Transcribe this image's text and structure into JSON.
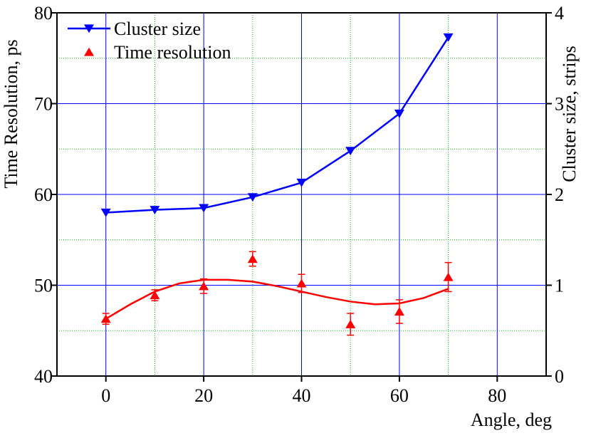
{
  "chart_data": {
    "type": "line",
    "x_label": "Angle, deg",
    "y_label": "Time Resolution, ps",
    "y2_label": "Cluster size, strips",
    "x": [
      0,
      10,
      20,
      30,
      40,
      50,
      60,
      70
    ],
    "series": [
      {
        "name": "Cluster size",
        "color": "#0000ff",
        "marker": "triangle-down",
        "axis": "y2",
        "line": true,
        "values": [
          1.8,
          1.83,
          1.85,
          1.97,
          2.13,
          2.48,
          2.89,
          3.73
        ]
      },
      {
        "name": "Time resolution",
        "color": "#ff0000",
        "marker": "triangle-up",
        "line": false,
        "values": [
          46.3,
          48.9,
          49.9,
          52.9,
          50.2,
          45.7,
          47.1,
          50.9
        ],
        "errors": [
          0.6,
          0.6,
          0.8,
          0.8,
          1.0,
          1.2,
          1.3,
          1.6
        ]
      }
    ],
    "fit": {
      "color": "#ff0000",
      "x": [
        0,
        5,
        10,
        15,
        20,
        25,
        30,
        35,
        40,
        45,
        50,
        55,
        60,
        65,
        70
      ],
      "values": [
        46.3,
        47.9,
        49.3,
        50.2,
        50.6,
        50.6,
        50.4,
        49.9,
        49.3,
        48.7,
        48.2,
        47.9,
        48.0,
        48.6,
        49.6
      ]
    },
    "xlim": [
      -10,
      90
    ],
    "xticks": [
      0,
      20,
      40,
      60,
      80
    ],
    "xminorticks": [
      10,
      30,
      50,
      70
    ],
    "ylim": [
      40,
      80
    ],
    "yticks": [
      40,
      50,
      60,
      70,
      80
    ],
    "yminorticks": [
      45,
      55,
      65,
      75
    ],
    "y2lim": [
      0,
      4
    ],
    "y2ticks": [
      0,
      1,
      2,
      3,
      4
    ],
    "grid": true,
    "grid_color": "#0000ff",
    "minor_grid_color": "#00c000",
    "legend": "upper left"
  }
}
